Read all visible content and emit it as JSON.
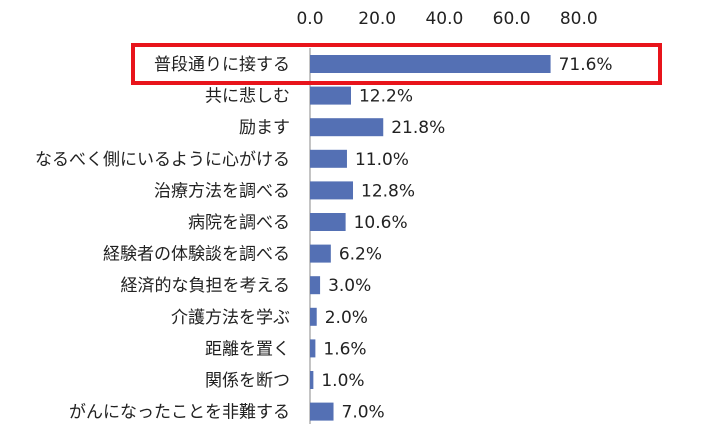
{
  "chart_data": {
    "type": "bar",
    "orientation": "horizontal",
    "categories": [
      "普段通りに接する",
      "共に悲しむ",
      "励ます",
      "なるべく側にいるように心がける",
      "治療方法を調べる",
      "病院を調べる",
      "経験者の体験談を調べる",
      "経済的な負担を考える",
      "介護方法を学ぶ",
      "距離を置く",
      "関係を断つ",
      "がんになったことを非難する"
    ],
    "values": [
      71.6,
      12.2,
      21.8,
      11.0,
      12.8,
      10.6,
      6.2,
      3.0,
      2.0,
      1.6,
      1.0,
      7.0
    ],
    "value_labels": [
      "71.6%",
      "12.2%",
      "21.8%",
      "11.0%",
      "12.8%",
      "10.6%",
      "6.2%",
      "3.0%",
      "2.0%",
      "1.6%",
      "1.0%",
      "7.0%"
    ],
    "xticks": [
      "0.0",
      "20.0",
      "40.0",
      "60.0",
      "80.0"
    ],
    "xtick_values": [
      0,
      20,
      40,
      60,
      80
    ],
    "xlim": [
      0,
      80
    ],
    "axis_position": "top",
    "grid": false,
    "highlighted_category_index": 0,
    "colors": {
      "bar": "#5470b4",
      "highlight": "#e8141b",
      "axis": "#888888"
    }
  }
}
